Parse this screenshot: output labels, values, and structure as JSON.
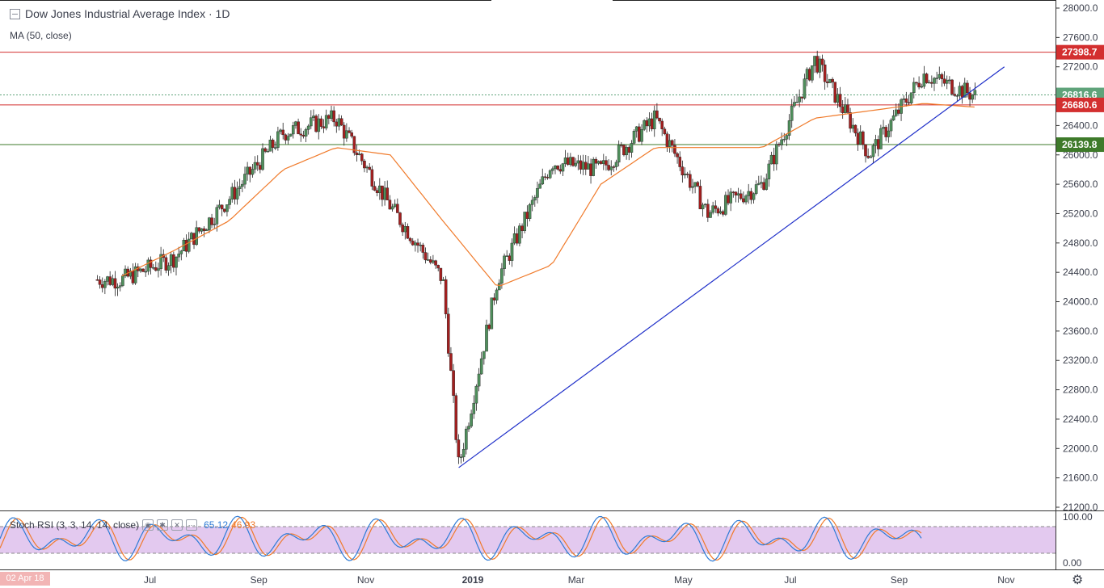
{
  "title": "Dow Jones Industrial Average Index · 1D",
  "ma_label": "MA (50, close)",
  "stoch": {
    "label": "Stoch RSI (3, 3, 14, 14, close)",
    "k": "65.12",
    "d": "46.93",
    "axis": [
      "100.00",
      "0.00"
    ]
  },
  "date_badge": "02 Apr 18",
  "x_labels": [
    "Jul",
    "Sep",
    "Nov",
    "2019",
    "Mar",
    "May",
    "Jul",
    "Sep",
    "Nov"
  ],
  "y_ticks": [
    "28000.0",
    "27600.0",
    "27200.0",
    "26800.0",
    "26400.0",
    "26000.0",
    "25600.0",
    "25200.0",
    "24800.0",
    "24400.0",
    "24000.0",
    "23600.0",
    "23200.0",
    "22800.0",
    "22400.0",
    "22000.0",
    "21600.0",
    "21200.0"
  ],
  "price_tags": [
    {
      "label": "27398.7",
      "value": 27398.7,
      "color": "#d32f2f"
    },
    {
      "label": "26816.6",
      "value": 26816.6,
      "color": "#5fa37a"
    },
    {
      "label": "26680.6",
      "value": 26680.6,
      "color": "#d32f2f"
    },
    {
      "label": "26139.8",
      "value": 26139.8,
      "color": "#3e7a2a"
    }
  ],
  "colors": {
    "up": "#4f8f5c",
    "down": "#a31f1f",
    "ma": "#f07a2a",
    "trend": "#1f2fc9",
    "stoch_k": "#2e7bd6",
    "stoch_d": "#f07a2a",
    "stoch_band": "#e3c9ef"
  },
  "chart_data": {
    "type": "line",
    "title": "Dow Jones Industrial Average Index · 1D",
    "ylim": [
      21200,
      28000
    ],
    "horizontal_levels": [
      27398.7,
      26680.6,
      26139.8
    ],
    "last_price": 26816.6,
    "series": [
      {
        "name": "Dow Jones Industrial Average Index",
        "x": [
          "2018-06",
          "2018-07",
          "2018-08",
          "2018-09",
          "2018-10",
          "2018-11",
          "2018-12",
          "2018-12-24",
          "2019-01",
          "2019-02",
          "2019-03",
          "2019-04",
          "2019-05",
          "2019-06",
          "2019-07",
          "2019-08",
          "2019-09",
          "2019-10"
        ],
        "values": [
          24300,
          24600,
          25400,
          26300,
          26500,
          25300,
          24300,
          21750,
          24300,
          25900,
          25800,
          26500,
          25200,
          25600,
          27300,
          26000,
          27100,
          26800
        ]
      },
      {
        "name": "MA (50, close)",
        "x": [
          "2018-06",
          "2018-07",
          "2018-08",
          "2018-09",
          "2018-10",
          "2018-11",
          "2018-12",
          "2019-01",
          "2019-02",
          "2019-03",
          "2019-04",
          "2019-05",
          "2019-06",
          "2019-07",
          "2019-08",
          "2019-09",
          "2019-10"
        ],
        "values": [
          24350,
          24700,
          25100,
          25800,
          26100,
          26000,
          25100,
          24200,
          24500,
          25600,
          26100,
          26100,
          26100,
          26500,
          26600,
          26700,
          26650
        ]
      }
    ],
    "trendline": {
      "from": [
        "2018-12-24",
        21740
      ],
      "to": [
        "2019-10-31",
        27200
      ]
    }
  }
}
